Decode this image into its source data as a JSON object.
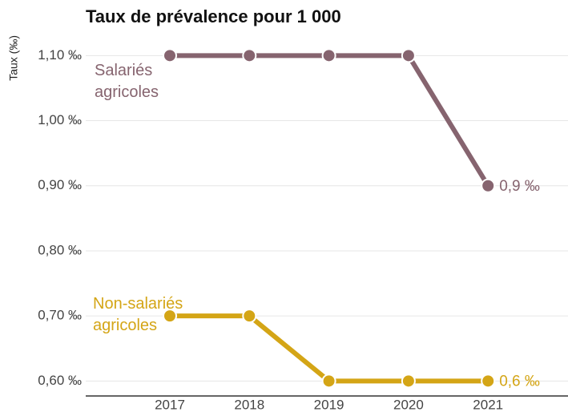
{
  "chart_data": {
    "type": "line",
    "title": "Taux de prévalence pour 1 000",
    "y_label": "Taux (‰)",
    "categories": [
      "2017",
      "2018",
      "2019",
      "2020",
      "2021"
    ],
    "series": [
      {
        "name": "Salariés agricoles",
        "color": "#86646f",
        "values": [
          1.1,
          1.1,
          1.1,
          1.1,
          0.9
        ],
        "value_labels": [
          null,
          null,
          null,
          null,
          "0,9 ‰"
        ]
      },
      {
        "name": "Non-salariés agricoles",
        "color": "#d4a516",
        "values": [
          0.7,
          0.7,
          0.6,
          0.6,
          0.6
        ],
        "value_labels": [
          null,
          null,
          null,
          null,
          "0,6 ‰"
        ]
      }
    ],
    "ylim": [
      0.577,
      1.13
    ],
    "yticks": [
      {
        "value": 0.6,
        "label": "0,60 ‰"
      },
      {
        "value": 0.7,
        "label": "0,70 ‰"
      },
      {
        "value": 0.8,
        "label": "0,80 ‰"
      },
      {
        "value": 0.9,
        "label": "0,90 ‰"
      },
      {
        "value": 1.0,
        "label": "1,00 ‰"
      },
      {
        "value": 1.1,
        "label": "1,10 ‰"
      }
    ],
    "grid": true
  }
}
